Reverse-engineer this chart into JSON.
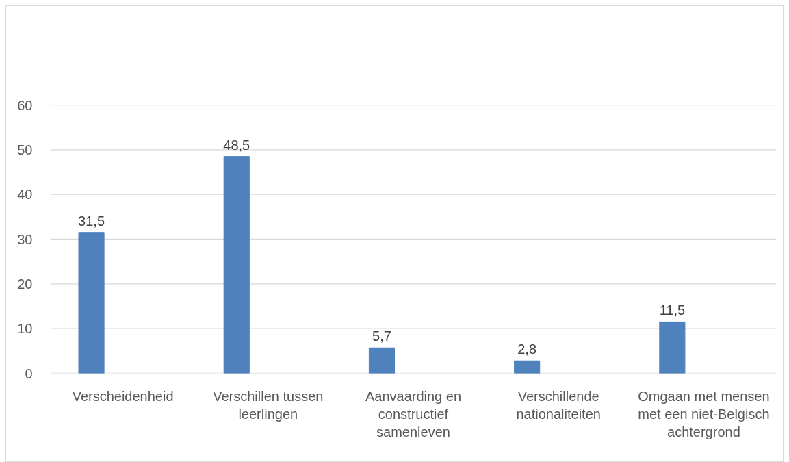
{
  "chart_data": {
    "type": "bar",
    "categories": [
      "Verscheidenheid",
      "Verschillen tussen leerlingen",
      "Aanvaarding en constructief samenleven",
      "Verschillende nationaliteiten",
      "Omgaan met mensen met een niet-Belgisch achtergrond"
    ],
    "values": [
      31.5,
      48.5,
      5.7,
      2.8,
      11.5
    ],
    "value_labels": [
      "31,5",
      "48,5",
      "5,7",
      "2,8",
      "11,5"
    ],
    "color": "#4f81bd",
    "ylim": [
      0,
      60
    ],
    "yticks": [
      0,
      10,
      20,
      30,
      40,
      50,
      60
    ],
    "grid": "y"
  }
}
